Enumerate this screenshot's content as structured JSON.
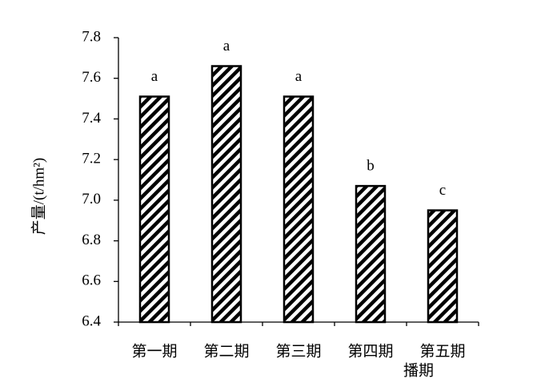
{
  "chart_data": {
    "type": "bar",
    "y_label": "产量/(t/hm²)",
    "x_label": "播期",
    "categories": [
      "第一期",
      "第二期",
      "第三期",
      "第四期",
      "第五期"
    ],
    "values": [
      7.51,
      7.66,
      7.51,
      7.07,
      6.95
    ],
    "annotations": [
      "a",
      "a",
      "a",
      "b",
      "c"
    ],
    "color": "#000000",
    "ylim": [
      6.4,
      7.8
    ],
    "yticks": [
      6.4,
      6.6,
      6.8,
      {
        "value": 7,
        "label": "7.0"
      },
      7.2,
      7.4,
      7.6,
      7.8
    ]
  }
}
